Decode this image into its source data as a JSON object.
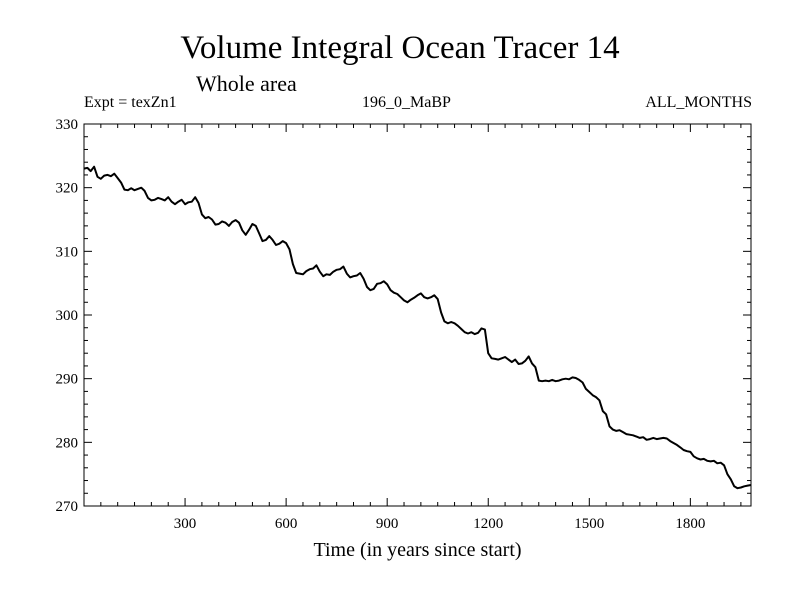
{
  "chart_data": {
    "type": "line",
    "title": "Volume Integral Ocean Tracer 14",
    "subtitle": "Whole area",
    "experiment_label": "Expt = texZn1",
    "run_label": "196_0_MaBP",
    "period_label": "ALL_MONTHS",
    "xlabel": "Time (in years since start)",
    "ylabel": "",
    "xlim": [
      0,
      1980
    ],
    "ylim": [
      270,
      330
    ],
    "x_ticks": [
      300,
      600,
      900,
      1200,
      1500,
      1800
    ],
    "y_ticks": [
      270,
      280,
      290,
      300,
      310,
      320,
      330
    ],
    "series": [
      {
        "name": "Tracer 14",
        "points": [
          [
            0,
            323.0
          ],
          [
            10,
            323.1
          ],
          [
            20,
            322.6
          ],
          [
            30,
            323.3
          ],
          [
            40,
            321.7
          ],
          [
            50,
            321.4
          ],
          [
            60,
            321.9
          ],
          [
            70,
            322.0
          ],
          [
            80,
            321.8
          ],
          [
            90,
            322.2
          ],
          [
            100,
            321.5
          ],
          [
            110,
            320.8
          ],
          [
            120,
            319.7
          ],
          [
            130,
            319.6
          ],
          [
            140,
            319.9
          ],
          [
            150,
            319.6
          ],
          [
            160,
            319.8
          ],
          [
            170,
            320.0
          ],
          [
            180,
            319.5
          ],
          [
            190,
            318.4
          ],
          [
            200,
            318.0
          ],
          [
            210,
            318.1
          ],
          [
            220,
            318.4
          ],
          [
            230,
            318.2
          ],
          [
            240,
            318.0
          ],
          [
            250,
            318.5
          ],
          [
            260,
            317.8
          ],
          [
            270,
            317.4
          ],
          [
            280,
            317.8
          ],
          [
            290,
            318.1
          ],
          [
            300,
            317.4
          ],
          [
            310,
            317.7
          ],
          [
            320,
            317.8
          ],
          [
            330,
            318.5
          ],
          [
            340,
            317.6
          ],
          [
            350,
            315.8
          ],
          [
            360,
            315.2
          ],
          [
            370,
            315.4
          ],
          [
            380,
            315.0
          ],
          [
            390,
            314.2
          ],
          [
            400,
            314.3
          ],
          [
            410,
            314.7
          ],
          [
            420,
            314.5
          ],
          [
            430,
            314.0
          ],
          [
            440,
            314.6
          ],
          [
            450,
            314.9
          ],
          [
            460,
            314.5
          ],
          [
            470,
            313.3
          ],
          [
            480,
            312.6
          ],
          [
            490,
            313.4
          ],
          [
            500,
            314.3
          ],
          [
            510,
            314.0
          ],
          [
            520,
            312.8
          ],
          [
            530,
            311.6
          ],
          [
            540,
            311.8
          ],
          [
            550,
            312.4
          ],
          [
            560,
            311.8
          ],
          [
            570,
            311.0
          ],
          [
            580,
            311.2
          ],
          [
            590,
            311.6
          ],
          [
            600,
            311.3
          ],
          [
            610,
            310.3
          ],
          [
            620,
            308.0
          ],
          [
            630,
            306.6
          ],
          [
            640,
            306.5
          ],
          [
            650,
            306.4
          ],
          [
            660,
            306.9
          ],
          [
            670,
            307.2
          ],
          [
            680,
            307.3
          ],
          [
            690,
            307.8
          ],
          [
            700,
            306.8
          ],
          [
            710,
            306.1
          ],
          [
            720,
            306.4
          ],
          [
            730,
            306.3
          ],
          [
            740,
            306.8
          ],
          [
            750,
            307.1
          ],
          [
            760,
            307.2
          ],
          [
            770,
            307.6
          ],
          [
            780,
            306.5
          ],
          [
            790,
            305.9
          ],
          [
            800,
            306.1
          ],
          [
            810,
            306.2
          ],
          [
            820,
            306.6
          ],
          [
            830,
            305.7
          ],
          [
            840,
            304.4
          ],
          [
            850,
            303.9
          ],
          [
            860,
            304.1
          ],
          [
            870,
            304.9
          ],
          [
            880,
            305.0
          ],
          [
            890,
            305.3
          ],
          [
            900,
            304.8
          ],
          [
            910,
            303.9
          ],
          [
            920,
            303.5
          ],
          [
            930,
            303.3
          ],
          [
            940,
            302.8
          ],
          [
            950,
            302.3
          ],
          [
            960,
            302.0
          ],
          [
            970,
            302.4
          ],
          [
            980,
            302.7
          ],
          [
            990,
            303.1
          ],
          [
            1000,
            303.4
          ],
          [
            1010,
            302.8
          ],
          [
            1020,
            302.6
          ],
          [
            1030,
            302.8
          ],
          [
            1040,
            303.1
          ],
          [
            1050,
            302.5
          ],
          [
            1060,
            300.4
          ],
          [
            1070,
            299.0
          ],
          [
            1080,
            298.7
          ],
          [
            1090,
            298.9
          ],
          [
            1100,
            298.7
          ],
          [
            1110,
            298.3
          ],
          [
            1120,
            297.8
          ],
          [
            1130,
            297.3
          ],
          [
            1140,
            297.1
          ],
          [
            1150,
            297.3
          ],
          [
            1160,
            297.0
          ],
          [
            1170,
            297.2
          ],
          [
            1180,
            297.9
          ],
          [
            1190,
            297.7
          ],
          [
            1200,
            294.0
          ],
          [
            1210,
            293.2
          ],
          [
            1220,
            293.1
          ],
          [
            1230,
            293.0
          ],
          [
            1240,
            293.2
          ],
          [
            1250,
            293.4
          ],
          [
            1260,
            293.0
          ],
          [
            1270,
            292.6
          ],
          [
            1280,
            293.0
          ],
          [
            1290,
            292.3
          ],
          [
            1300,
            292.4
          ],
          [
            1310,
            292.8
          ],
          [
            1320,
            293.5
          ],
          [
            1330,
            292.4
          ],
          [
            1340,
            291.8
          ],
          [
            1350,
            289.7
          ],
          [
            1360,
            289.6
          ],
          [
            1370,
            289.7
          ],
          [
            1380,
            289.6
          ],
          [
            1390,
            289.8
          ],
          [
            1400,
            289.6
          ],
          [
            1410,
            289.7
          ],
          [
            1420,
            289.9
          ],
          [
            1430,
            290.0
          ],
          [
            1440,
            289.9
          ],
          [
            1450,
            290.2
          ],
          [
            1460,
            290.1
          ],
          [
            1470,
            289.8
          ],
          [
            1480,
            289.4
          ],
          [
            1490,
            288.4
          ],
          [
            1500,
            287.9
          ],
          [
            1510,
            287.4
          ],
          [
            1520,
            287.1
          ],
          [
            1530,
            286.6
          ],
          [
            1540,
            284.9
          ],
          [
            1550,
            284.4
          ],
          [
            1560,
            282.5
          ],
          [
            1570,
            282.0
          ],
          [
            1580,
            281.8
          ],
          [
            1590,
            281.9
          ],
          [
            1600,
            281.6
          ],
          [
            1610,
            281.3
          ],
          [
            1620,
            281.2
          ],
          [
            1630,
            281.1
          ],
          [
            1640,
            280.9
          ],
          [
            1650,
            280.7
          ],
          [
            1660,
            280.8
          ],
          [
            1670,
            280.4
          ],
          [
            1680,
            280.5
          ],
          [
            1690,
            280.7
          ],
          [
            1700,
            280.5
          ],
          [
            1710,
            280.6
          ],
          [
            1720,
            280.7
          ],
          [
            1730,
            280.6
          ],
          [
            1740,
            280.2
          ],
          [
            1750,
            279.9
          ],
          [
            1760,
            279.6
          ],
          [
            1770,
            279.2
          ],
          [
            1780,
            278.8
          ],
          [
            1790,
            278.6
          ],
          [
            1800,
            278.5
          ],
          [
            1810,
            277.8
          ],
          [
            1820,
            277.5
          ],
          [
            1830,
            277.3
          ],
          [
            1840,
            277.4
          ],
          [
            1850,
            277.1
          ],
          [
            1860,
            277.0
          ],
          [
            1870,
            277.1
          ],
          [
            1880,
            276.7
          ],
          [
            1890,
            276.8
          ],
          [
            1900,
            276.4
          ],
          [
            1910,
            275.0
          ],
          [
            1920,
            274.2
          ],
          [
            1930,
            273.1
          ],
          [
            1940,
            272.8
          ],
          [
            1950,
            272.9
          ],
          [
            1960,
            273.1
          ],
          [
            1970,
            273.2
          ],
          [
            1980,
            273.3
          ]
        ]
      }
    ]
  }
}
